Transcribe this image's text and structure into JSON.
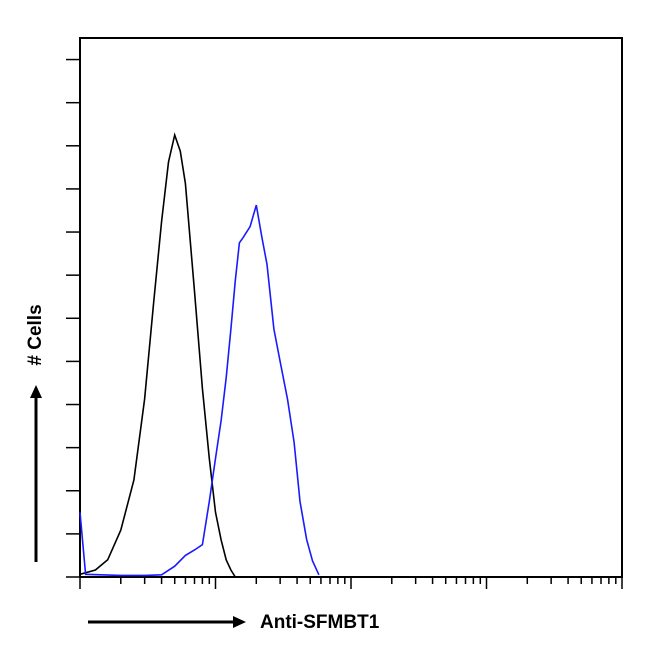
{
  "chart_data": {
    "type": "line",
    "x_label": "Anti-SFMBT1",
    "y_label": "# Cells",
    "xscale": "log",
    "xlim": [
      1,
      10000
    ],
    "ylim": [
      0,
      100
    ],
    "xticks": [
      1,
      2,
      3,
      4,
      5,
      6,
      7,
      8,
      9,
      10,
      20,
      30,
      40,
      50,
      60,
      70,
      80,
      90,
      100,
      200,
      300,
      400,
      500,
      600,
      700,
      800,
      900,
      1000,
      2000,
      3000,
      4000,
      5000,
      6000,
      7000,
      8000,
      9000,
      10000
    ],
    "yticks": [
      0,
      8,
      16,
      24,
      32,
      40,
      48,
      56,
      64,
      72,
      80,
      88,
      96
    ],
    "series": [
      {
        "color": "#000000",
        "x": [
          1,
          1.3,
          1.6,
          2,
          2.5,
          3,
          3.5,
          4,
          4.5,
          5,
          5.5,
          6,
          7,
          8,
          9,
          10,
          11,
          12,
          13,
          14
        ],
        "values": [
          0.5,
          1.3,
          3.2,
          8.7,
          18,
          33,
          51,
          66,
          77,
          82,
          79,
          73,
          53,
          35,
          22,
          12,
          6.9,
          3.2,
          1.3,
          0
        ]
      },
      {
        "color": "#1a1aff",
        "x": [
          1,
          1.1,
          2,
          3,
          4,
          5,
          6,
          7,
          8,
          9,
          10,
          11,
          12,
          13,
          14,
          15,
          16,
          18,
          20,
          22,
          24,
          27,
          30,
          34,
          38,
          42,
          47,
          52,
          58
        ],
        "values": [
          12,
          0.5,
          0.3,
          0.3,
          0.4,
          2,
          4,
          5,
          6,
          14,
          22,
          29,
          37,
          46,
          55,
          62,
          63,
          65,
          69,
          63,
          58,
          46,
          40,
          33,
          25,
          14,
          7,
          3,
          0.4
        ]
      }
    ]
  }
}
